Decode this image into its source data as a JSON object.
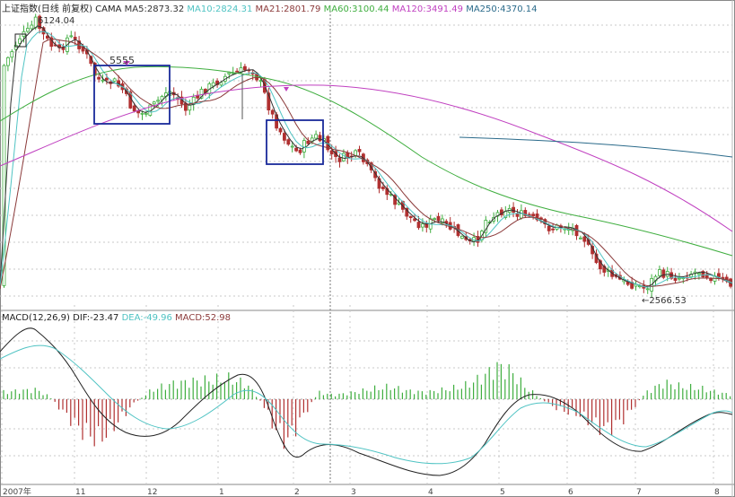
{
  "header": {
    "title": "上证指数(日线 前复权) CAMA",
    "ma": [
      {
        "label": "MA5:2873.32",
        "color": "#333333"
      },
      {
        "label": "MA10:2824.31",
        "color": "#4fc3c3"
      },
      {
        "label": "MA21:2801.79",
        "color": "#8b3a3a"
      },
      {
        "label": "MA60:3100.44",
        "color": "#3fae3f"
      },
      {
        "label": "MA120:3491.49",
        "color": "#c040c0"
      },
      {
        "label": "MA250:4370.14",
        "color": "#2a6a8a"
      }
    ]
  },
  "macd_header": {
    "title": "MACD(12,26,9)",
    "dif": {
      "label": "DIF:-23.47",
      "color": "#222222"
    },
    "dea": {
      "label": "DEA:-49.96",
      "color": "#4fc3c3"
    },
    "macd": {
      "label": "MACD:52.98",
      "color": "#8b3a3a"
    }
  },
  "annotations": {
    "high": "6124.04",
    "mid": "5555",
    "low": "←2566.53"
  },
  "x_ticks": [
    "2007年",
    "11",
    "12",
    "1",
    "2",
    "3",
    "4",
    "5",
    "6",
    "7",
    "8"
  ],
  "colors": {
    "up": "#3fae3f",
    "down": "#b03030",
    "box": "#1a2a9a",
    "grid": "#c8c8c8"
  },
  "chart_data": {
    "type": "candlestick",
    "y_range": [
      2500,
      6200
    ],
    "values_close": [
      5800,
      6124,
      5900,
      5700,
      5555,
      5300,
      5200,
      5100,
      5150,
      5300,
      5450,
      5400,
      5250,
      4800,
      4600,
      4500,
      4450,
      4400,
      4300,
      4000,
      3800,
      3600,
      3400,
      3200,
      3000,
      2900,
      2850,
      2700,
      2566.53,
      2650,
      2750,
      2800,
      2873.32
    ],
    "ma5": 2873.32,
    "ma10": 2824.31,
    "ma21": 2801.79,
    "ma60": 3100.44,
    "ma120": 3491.49,
    "ma250": 4370.14,
    "macd": {
      "dif": -23.47,
      "dea": -49.96,
      "macd": 52.98
    }
  }
}
